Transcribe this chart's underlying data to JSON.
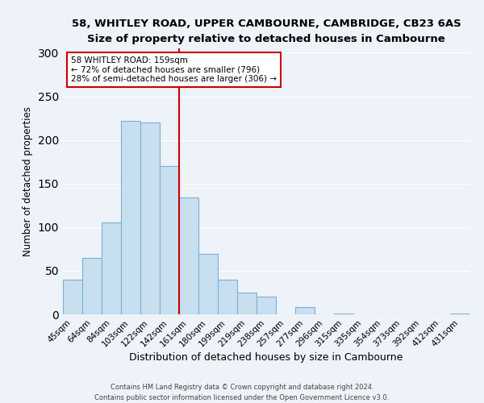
{
  "title1": "58, WHITLEY ROAD, UPPER CAMBOURNE, CAMBRIDGE, CB23 6AS",
  "title2": "Size of property relative to detached houses in Cambourne",
  "xlabel": "Distribution of detached houses by size in Cambourne",
  "ylabel": "Number of detached properties",
  "bar_color": "#c8dff0",
  "bar_edge_color": "#7ab0d4",
  "categories": [
    "45sqm",
    "64sqm",
    "84sqm",
    "103sqm",
    "122sqm",
    "142sqm",
    "161sqm",
    "180sqm",
    "199sqm",
    "219sqm",
    "238sqm",
    "257sqm",
    "277sqm",
    "296sqm",
    "315sqm",
    "335sqm",
    "354sqm",
    "373sqm",
    "392sqm",
    "412sqm",
    "431sqm"
  ],
  "values": [
    40,
    65,
    105,
    222,
    220,
    170,
    134,
    69,
    40,
    25,
    20,
    0,
    8,
    0,
    1,
    0,
    0,
    0,
    0,
    0,
    1
  ],
  "vline_index": 6,
  "vline_color": "#cc0000",
  "annotation_line1": "58 WHITLEY ROAD: 159sqm",
  "annotation_line2": "← 72% of detached houses are smaller (796)",
  "annotation_line3": "28% of semi-detached houses are larger (306) →",
  "ylim": [
    0,
    305
  ],
  "footer1": "Contains HM Land Registry data © Crown copyright and database right 2024.",
  "footer2": "Contains public sector information licensed under the Open Government Licence v3.0.",
  "background_color": "#eef2f9",
  "plot_bg_color": "#eef2f9"
}
